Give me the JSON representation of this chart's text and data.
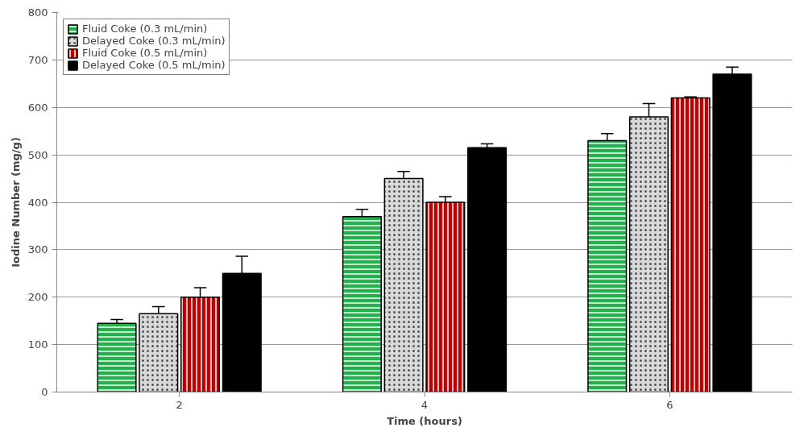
{
  "chart_data": {
    "type": "bar",
    "xlabel": "Time (hours)",
    "ylabel": "Iodine Number (mg/g)",
    "categories": [
      "2",
      "4",
      "6"
    ],
    "ylim": [
      0,
      800
    ],
    "yticks": [
      0,
      100,
      200,
      300,
      400,
      500,
      600,
      700,
      800
    ],
    "grid": "y",
    "legend": "top left",
    "series": [
      {
        "name": "Fluid Coke (0.3 mL/min)",
        "color": "#22b14c",
        "values": [
          145,
          370,
          530
        ],
        "errors": [
          [
            145,
            153
          ],
          [
            370,
            385
          ],
          [
            530,
            545
          ]
        ]
      },
      {
        "name": "Delayed Coke (0.3 mL/min)",
        "color": "#d9d9d9",
        "values": [
          165,
          450,
          580
        ],
        "errors": [
          [
            165,
            180
          ],
          [
            450,
            465
          ],
          [
            580,
            608
          ]
        ]
      },
      {
        "name": "Fluid Coke (0.5 mL/min)",
        "color": "#c00000",
        "values": [
          200,
          400,
          620
        ],
        "errors": [
          [
            200,
            220
          ],
          [
            400,
            412
          ],
          [
            620,
            622
          ]
        ]
      },
      {
        "name": "Delayed Coke (0.5 mL/min)",
        "color": "#000000",
        "values": [
          250,
          515,
          670
        ],
        "errors": [
          [
            250,
            286
          ],
          [
            515,
            523
          ],
          [
            670,
            685
          ]
        ]
      }
    ]
  }
}
